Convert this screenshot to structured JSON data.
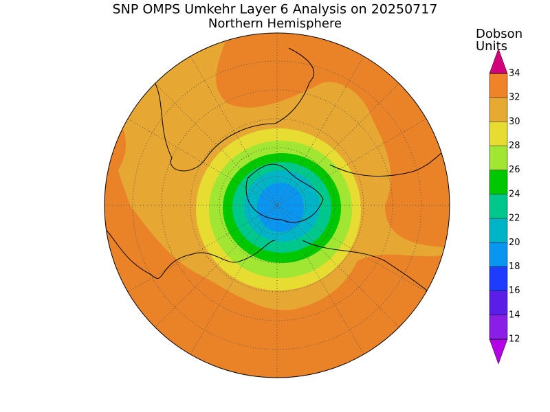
{
  "header": {
    "title": "SNP OMPS Umkehr Layer 6 Analysis on 20250717",
    "subtitle": "Northern Hemisphere"
  },
  "colorbar": {
    "label_lines": [
      "Dobson",
      "Units"
    ],
    "lim": [
      12,
      34
    ],
    "ticks": [
      12,
      14,
      16,
      18,
      20,
      22,
      24,
      26,
      28,
      30,
      32,
      34
    ],
    "band_colors": [
      "#8a1ee6",
      "#5a1ee6",
      "#1e3cff",
      "#0a96f0",
      "#00b4c8",
      "#00c88c",
      "#00c800",
      "#a0e632",
      "#e6dc32",
      "#e6aa32",
      "#f08228",
      "#e60000"
    ],
    "under_color": "#b400e6",
    "over_color": "#d2007a"
  }
}
